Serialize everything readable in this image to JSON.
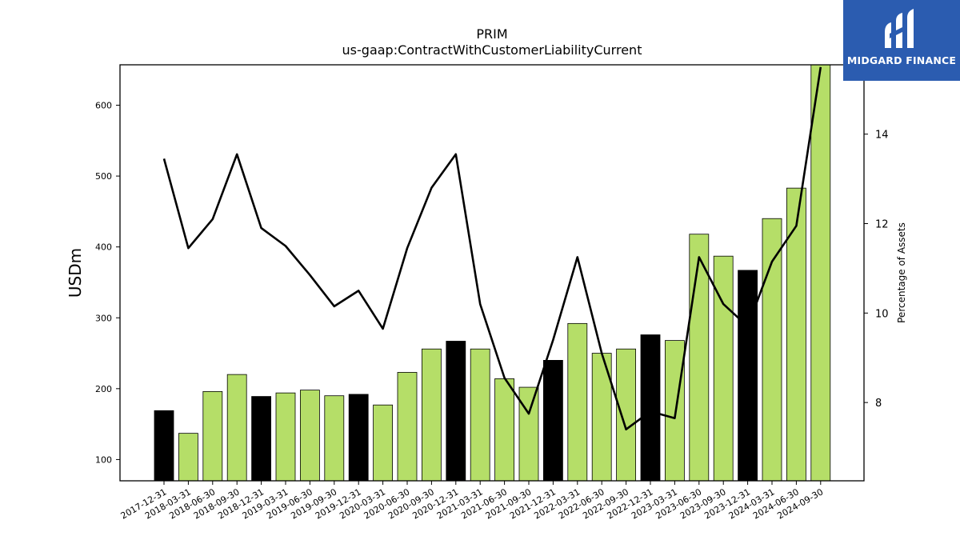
{
  "chart_data": {
    "type": "bar",
    "title": "PRIM",
    "subtitle": "us-gaap:ContractWithCustomerLiabilityCurrent",
    "ylabel": "USDm",
    "y2label": "Percentage of Assets",
    "ylim": [
      70,
      657
    ],
    "y2lim": [
      6.25,
      15.55
    ],
    "yticks": [
      100,
      200,
      300,
      400,
      500,
      600
    ],
    "y2ticks": [
      8,
      10,
      12,
      14
    ],
    "categories": [
      "2017-12-31",
      "2018-03-31",
      "2018-06-30",
      "2018-09-30",
      "2018-12-31",
      "2019-03-31",
      "2019-06-30",
      "2019-09-30",
      "2019-12-31",
      "2020-03-31",
      "2020-06-30",
      "2020-09-30",
      "2020-12-31",
      "2021-03-31",
      "2021-06-30",
      "2021-09-30",
      "2021-12-31",
      "2022-03-31",
      "2022-06-30",
      "2022-09-30",
      "2022-12-31",
      "2023-03-31",
      "2023-06-30",
      "2023-09-30",
      "2023-12-31",
      "2024-03-31",
      "2024-06-30",
      "2024-09-30"
    ],
    "series": [
      {
        "type": "bar",
        "values": [
          169,
          137,
          196,
          220,
          189,
          194,
          198,
          190,
          192,
          177,
          223,
          256,
          267,
          256,
          214,
          202,
          240,
          292,
          250,
          256,
          276,
          268,
          418,
          387,
          367,
          440,
          483,
          657
        ],
        "year_end": [
          true,
          false,
          false,
          false,
          true,
          false,
          false,
          false,
          true,
          false,
          false,
          false,
          true,
          false,
          false,
          false,
          true,
          false,
          false,
          false,
          true,
          false,
          false,
          false,
          true,
          false,
          false,
          false
        ]
      },
      {
        "type": "line",
        "axis": "right",
        "values": [
          13.45,
          11.45,
          12.1,
          13.55,
          11.9,
          11.5,
          10.85,
          10.15,
          10.5,
          9.65,
          11.45,
          12.8,
          13.55,
          10.2,
          8.55,
          7.75,
          9.4,
          11.25,
          9.1,
          7.4,
          7.8,
          7.65,
          11.25,
          10.2,
          9.7,
          11.15,
          11.95,
          15.5
        ]
      }
    ],
    "colors": {
      "bar": "#b5de68",
      "bar_year_end": "#000000",
      "line": "#000000"
    },
    "grid": false
  },
  "logo": {
    "brand": "MIDGARD FINANCE",
    "icon": "midgard-logo-icon"
  }
}
